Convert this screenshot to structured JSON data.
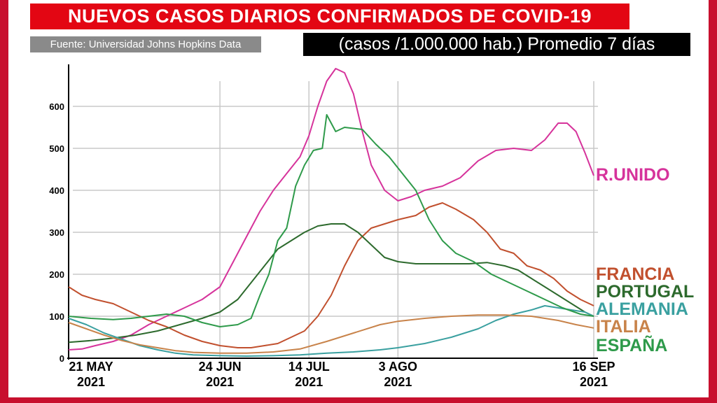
{
  "header": {
    "title": "NUEVOS CASOS DIARIOS CONFIRMADOS DE COVID-19",
    "source": "Fuente: Universidad Johns Hopkins Data",
    "subtitle": "(casos /1.000.000 hab.) Promedio 7 días"
  },
  "colors": {
    "frame": "#c8102e",
    "title_bg": "#e30613",
    "source_bg": "#8a8a8a",
    "subtitle_bg": "#000000"
  },
  "chart_data": {
    "type": "line",
    "x_start": "2021-05-21",
    "x_end": "2021-09-16",
    "ylim": [
      0,
      700
    ],
    "yticks": [
      0,
      100,
      200,
      300,
      400,
      500,
      600
    ],
    "grid": true,
    "x_ticks": [
      {
        "date": "2021-05-21",
        "line1": "21 MAY",
        "line2": "2021"
      },
      {
        "date": "2021-06-24",
        "line1": "24 JUN",
        "line2": "2021"
      },
      {
        "date": "2021-07-14",
        "line1": "14 JUL",
        "line2": "2021"
      },
      {
        "date": "2021-08-03",
        "line1": "3 AGO",
        "line2": "2021"
      },
      {
        "date": "2021-09-16",
        "line1": "16 SEP",
        "line2": "2021"
      }
    ],
    "series": [
      {
        "name": "R.UNIDO",
        "color": "#d6339b",
        "points": [
          [
            "2021-05-21",
            20
          ],
          [
            "2021-05-24",
            22
          ],
          [
            "2021-05-27",
            30
          ],
          [
            "2021-05-31",
            40
          ],
          [
            "2021-06-04",
            55
          ],
          [
            "2021-06-08",
            80
          ],
          [
            "2021-06-12",
            100
          ],
          [
            "2021-06-16",
            120
          ],
          [
            "2021-06-20",
            140
          ],
          [
            "2021-06-24",
            170
          ],
          [
            "2021-06-27",
            230
          ],
          [
            "2021-06-30",
            290
          ],
          [
            "2021-07-03",
            350
          ],
          [
            "2021-07-06",
            400
          ],
          [
            "2021-07-09",
            440
          ],
          [
            "2021-07-12",
            480
          ],
          [
            "2021-07-14",
            530
          ],
          [
            "2021-07-16",
            600
          ],
          [
            "2021-07-18",
            660
          ],
          [
            "2021-07-20",
            690
          ],
          [
            "2021-07-22",
            680
          ],
          [
            "2021-07-24",
            630
          ],
          [
            "2021-07-26",
            540
          ],
          [
            "2021-07-28",
            460
          ],
          [
            "2021-07-31",
            400
          ],
          [
            "2021-08-03",
            375
          ],
          [
            "2021-08-06",
            385
          ],
          [
            "2021-08-09",
            400
          ],
          [
            "2021-08-13",
            410
          ],
          [
            "2021-08-17",
            430
          ],
          [
            "2021-08-21",
            470
          ],
          [
            "2021-08-25",
            495
          ],
          [
            "2021-08-29",
            500
          ],
          [
            "2021-09-02",
            495
          ],
          [
            "2021-09-05",
            520
          ],
          [
            "2021-09-08",
            560
          ],
          [
            "2021-09-10",
            560
          ],
          [
            "2021-09-12",
            540
          ],
          [
            "2021-09-14",
            490
          ],
          [
            "2021-09-16",
            435
          ]
        ]
      },
      {
        "name": "FRANCIA",
        "color": "#c1502e",
        "points": [
          [
            "2021-05-21",
            170
          ],
          [
            "2021-05-24",
            150
          ],
          [
            "2021-05-27",
            140
          ],
          [
            "2021-05-31",
            130
          ],
          [
            "2021-06-04",
            110
          ],
          [
            "2021-06-08",
            90
          ],
          [
            "2021-06-12",
            75
          ],
          [
            "2021-06-16",
            55
          ],
          [
            "2021-06-20",
            40
          ],
          [
            "2021-06-24",
            30
          ],
          [
            "2021-06-28",
            25
          ],
          [
            "2021-07-01",
            25
          ],
          [
            "2021-07-04",
            30
          ],
          [
            "2021-07-07",
            35
          ],
          [
            "2021-07-10",
            50
          ],
          [
            "2021-07-13",
            65
          ],
          [
            "2021-07-16",
            100
          ],
          [
            "2021-07-19",
            150
          ],
          [
            "2021-07-22",
            220
          ],
          [
            "2021-07-25",
            280
          ],
          [
            "2021-07-28",
            310
          ],
          [
            "2021-07-31",
            320
          ],
          [
            "2021-08-03",
            330
          ],
          [
            "2021-08-07",
            340
          ],
          [
            "2021-08-10",
            360
          ],
          [
            "2021-08-13",
            370
          ],
          [
            "2021-08-16",
            355
          ],
          [
            "2021-08-20",
            330
          ],
          [
            "2021-08-23",
            300
          ],
          [
            "2021-08-26",
            260
          ],
          [
            "2021-08-29",
            250
          ],
          [
            "2021-09-01",
            220
          ],
          [
            "2021-09-04",
            210
          ],
          [
            "2021-09-07",
            190
          ],
          [
            "2021-09-10",
            160
          ],
          [
            "2021-09-13",
            140
          ],
          [
            "2021-09-16",
            125
          ]
        ]
      },
      {
        "name": "PORTUGAL",
        "color": "#2d6a2d",
        "points": [
          [
            "2021-05-21",
            38
          ],
          [
            "2021-05-26",
            42
          ],
          [
            "2021-05-31",
            48
          ],
          [
            "2021-06-05",
            55
          ],
          [
            "2021-06-10",
            65
          ],
          [
            "2021-06-15",
            80
          ],
          [
            "2021-06-20",
            95
          ],
          [
            "2021-06-24",
            110
          ],
          [
            "2021-06-28",
            140
          ],
          [
            "2021-07-01",
            180
          ],
          [
            "2021-07-04",
            220
          ],
          [
            "2021-07-07",
            260
          ],
          [
            "2021-07-10",
            280
          ],
          [
            "2021-07-13",
            300
          ],
          [
            "2021-07-16",
            315
          ],
          [
            "2021-07-19",
            320
          ],
          [
            "2021-07-22",
            320
          ],
          [
            "2021-07-25",
            300
          ],
          [
            "2021-07-28",
            270
          ],
          [
            "2021-07-31",
            240
          ],
          [
            "2021-08-03",
            230
          ],
          [
            "2021-08-07",
            225
          ],
          [
            "2021-08-11",
            225
          ],
          [
            "2021-08-15",
            225
          ],
          [
            "2021-08-19",
            225
          ],
          [
            "2021-08-23",
            228
          ],
          [
            "2021-08-27",
            220
          ],
          [
            "2021-08-30",
            210
          ],
          [
            "2021-09-02",
            190
          ],
          [
            "2021-09-05",
            170
          ],
          [
            "2021-09-08",
            150
          ],
          [
            "2021-09-11",
            130
          ],
          [
            "2021-09-14",
            110
          ],
          [
            "2021-09-16",
            100
          ]
        ]
      },
      {
        "name": "ALEMANIA",
        "color": "#3aa0a0",
        "points": [
          [
            "2021-05-21",
            95
          ],
          [
            "2021-05-25",
            80
          ],
          [
            "2021-05-29",
            60
          ],
          [
            "2021-06-02",
            45
          ],
          [
            "2021-06-06",
            30
          ],
          [
            "2021-06-10",
            20
          ],
          [
            "2021-06-14",
            12
          ],
          [
            "2021-06-18",
            8
          ],
          [
            "2021-06-24",
            6
          ],
          [
            "2021-06-30",
            5
          ],
          [
            "2021-07-06",
            6
          ],
          [
            "2021-07-12",
            8
          ],
          [
            "2021-07-18",
            12
          ],
          [
            "2021-07-24",
            15
          ],
          [
            "2021-07-30",
            20
          ],
          [
            "2021-08-03",
            25
          ],
          [
            "2021-08-09",
            35
          ],
          [
            "2021-08-15",
            50
          ],
          [
            "2021-08-21",
            70
          ],
          [
            "2021-08-25",
            90
          ],
          [
            "2021-08-29",
            105
          ],
          [
            "2021-09-02",
            115
          ],
          [
            "2021-09-05",
            125
          ],
          [
            "2021-09-08",
            120
          ],
          [
            "2021-09-11",
            115
          ],
          [
            "2021-09-14",
            110
          ],
          [
            "2021-09-16",
            100
          ]
        ]
      },
      {
        "name": "ITALIA",
        "color": "#c8834a",
        "points": [
          [
            "2021-05-21",
            85
          ],
          [
            "2021-05-25",
            70
          ],
          [
            "2021-05-29",
            55
          ],
          [
            "2021-06-02",
            42
          ],
          [
            "2021-06-06",
            32
          ],
          [
            "2021-06-10",
            25
          ],
          [
            "2021-06-14",
            18
          ],
          [
            "2021-06-18",
            14
          ],
          [
            "2021-06-24",
            12
          ],
          [
            "2021-06-30",
            12
          ],
          [
            "2021-07-06",
            15
          ],
          [
            "2021-07-12",
            22
          ],
          [
            "2021-07-18",
            40
          ],
          [
            "2021-07-24",
            60
          ],
          [
            "2021-07-30",
            80
          ],
          [
            "2021-08-03",
            88
          ],
          [
            "2021-08-09",
            95
          ],
          [
            "2021-08-15",
            100
          ],
          [
            "2021-08-21",
            103
          ],
          [
            "2021-08-27",
            103
          ],
          [
            "2021-09-02",
            100
          ],
          [
            "2021-09-08",
            90
          ],
          [
            "2021-09-12",
            80
          ],
          [
            "2021-09-16",
            72
          ]
        ]
      },
      {
        "name": "ESPAÑA",
        "color": "#2e9a4a",
        "points": [
          [
            "2021-05-21",
            100
          ],
          [
            "2021-05-26",
            95
          ],
          [
            "2021-05-31",
            92
          ],
          [
            "2021-06-04",
            95
          ],
          [
            "2021-06-08",
            100
          ],
          [
            "2021-06-12",
            105
          ],
          [
            "2021-06-16",
            100
          ],
          [
            "2021-06-20",
            85
          ],
          [
            "2021-06-24",
            75
          ],
          [
            "2021-06-28",
            80
          ],
          [
            "2021-07-01",
            95
          ],
          [
            "2021-07-03",
            150
          ],
          [
            "2021-07-05",
            200
          ],
          [
            "2021-07-07",
            280
          ],
          [
            "2021-07-09",
            310
          ],
          [
            "2021-07-11",
            410
          ],
          [
            "2021-07-13",
            460
          ],
          [
            "2021-07-15",
            495
          ],
          [
            "2021-07-17",
            500
          ],
          [
            "2021-07-18",
            580
          ],
          [
            "2021-07-20",
            540
          ],
          [
            "2021-07-22",
            550
          ],
          [
            "2021-07-26",
            545
          ],
          [
            "2021-07-29",
            510
          ],
          [
            "2021-08-01",
            480
          ],
          [
            "2021-08-04",
            440
          ],
          [
            "2021-08-07",
            400
          ],
          [
            "2021-08-10",
            330
          ],
          [
            "2021-08-13",
            280
          ],
          [
            "2021-08-16",
            250
          ],
          [
            "2021-08-20",
            230
          ],
          [
            "2021-08-24",
            200
          ],
          [
            "2021-08-28",
            180
          ],
          [
            "2021-09-01",
            160
          ],
          [
            "2021-09-05",
            140
          ],
          [
            "2021-09-09",
            120
          ],
          [
            "2021-09-13",
            105
          ],
          [
            "2021-09-16",
            100
          ]
        ]
      }
    ]
  }
}
